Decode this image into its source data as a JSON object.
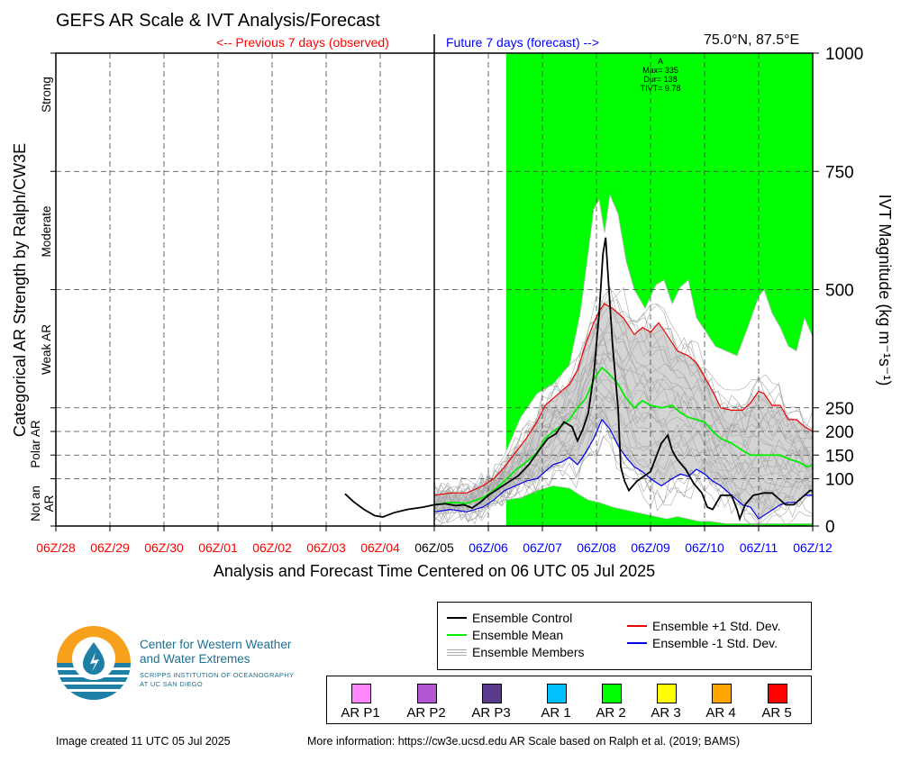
{
  "header": {
    "title": "GEFS AR Scale & IVT Analysis/Forecast",
    "previous_label": "<-- Previous 7 days (observed)",
    "future_label": "Future 7 days (forecast) -->",
    "location": "75.0°N, 87.5°E"
  },
  "chart_data": {
    "type": "line",
    "xlabel": "Analysis and Forecast Time Centered on 06 UTC 05 Jul 2025",
    "ylabel_right": "IVT Magnitude (kg m⁻¹s⁻¹)",
    "ylabel_left": "Categorical AR Strength by Ralph/CW3E",
    "ylim": [
      0,
      1000
    ],
    "x_ticks": [
      "06Z/28",
      "06Z/29",
      "06Z/30",
      "06Z/01",
      "06Z/02",
      "06Z/03",
      "06Z/04",
      "06Z/05",
      "06Z/06",
      "06Z/07",
      "06Z/08",
      "06Z/09",
      "06Z/10",
      "06Z/11",
      "06Z/12"
    ],
    "x_tick_colors": [
      "#ff0000",
      "#ff0000",
      "#ff0000",
      "#ff0000",
      "#ff0000",
      "#ff0000",
      "#ff0000",
      "#000000",
      "#0000ff",
      "#0000ff",
      "#0000ff",
      "#0000ff",
      "#0000ff",
      "#0000ff",
      "#0000ff"
    ],
    "y_ticks": [
      "1000",
      "750",
      "500",
      "250",
      "200",
      "150",
      "100",
      "0"
    ],
    "y_tick_values": [
      1000,
      750,
      500,
      250,
      200,
      150,
      100,
      0
    ],
    "categories_left": [
      "Strong",
      "Moderate",
      "Weak AR",
      "Polar AR",
      "Not an AR"
    ],
    "annotation": [
      "A",
      "Max= 335",
      "Dur= 138",
      "TIVT= 9.78"
    ],
    "ar_shading": {
      "start_day": 8.33,
      "end_day": 14,
      "color": "#00ff00",
      "label": "AR 2"
    },
    "control": [
      [
        5.35,
        68
      ],
      [
        5.5,
        52
      ],
      [
        5.7,
        35
      ],
      [
        5.9,
        22
      ],
      [
        6.05,
        19
      ],
      [
        6.25,
        28
      ],
      [
        6.5,
        35
      ],
      [
        6.8,
        40
      ],
      [
        7,
        45
      ],
      [
        7.2,
        47
      ],
      [
        7.4,
        43
      ],
      [
        7.55,
        45
      ],
      [
        7.7,
        38
      ],
      [
        7.85,
        50
      ],
      [
        8,
        65
      ],
      [
        8.2,
        80
      ],
      [
        8.4,
        95
      ],
      [
        8.55,
        106
      ],
      [
        8.75,
        130
      ],
      [
        8.95,
        162
      ],
      [
        9.1,
        185
      ],
      [
        9.25,
        195
      ],
      [
        9.4,
        220
      ],
      [
        9.55,
        210
      ],
      [
        9.65,
        180
      ],
      [
        9.75,
        205
      ],
      [
        9.85,
        240
      ],
      [
        9.95,
        320
      ],
      [
        10.05,
        450
      ],
      [
        10.12,
        575
      ],
      [
        10.17,
        610
      ],
      [
        10.22,
        520
      ],
      [
        10.3,
        380
      ],
      [
        10.4,
        250
      ],
      [
        10.45,
        125
      ],
      [
        10.52,
        95
      ],
      [
        10.6,
        75
      ],
      [
        10.75,
        95
      ],
      [
        11,
        115
      ],
      [
        11.2,
        175
      ],
      [
        11.32,
        192
      ],
      [
        11.4,
        160
      ],
      [
        11.5,
        140
      ],
      [
        11.65,
        120
      ],
      [
        11.8,
        90
      ],
      [
        11.95,
        70
      ],
      [
        12.05,
        40
      ],
      [
        12.15,
        35
      ],
      [
        12.3,
        65
      ],
      [
        12.5,
        65
      ],
      [
        12.6,
        35
      ],
      [
        12.65,
        15
      ],
      [
        12.75,
        45
      ],
      [
        12.9,
        65
      ],
      [
        13.1,
        70
      ],
      [
        13.25,
        70
      ],
      [
        13.35,
        60
      ],
      [
        13.5,
        45
      ],
      [
        13.65,
        45
      ],
      [
        13.8,
        60
      ],
      [
        13.95,
        75
      ],
      [
        14,
        75
      ]
    ],
    "mean": [
      [
        7,
        45
      ],
      [
        7.3,
        50
      ],
      [
        7.6,
        48
      ],
      [
        7.9,
        60
      ],
      [
        8.1,
        75
      ],
      [
        8.3,
        95
      ],
      [
        8.5,
        118
      ],
      [
        8.7,
        135
      ],
      [
        8.9,
        155
      ],
      [
        9.05,
        185
      ],
      [
        9.2,
        200
      ],
      [
        9.35,
        212
      ],
      [
        9.5,
        225
      ],
      [
        9.65,
        250
      ],
      [
        9.8,
        270
      ],
      [
        9.95,
        310
      ],
      [
        10.1,
        335
      ],
      [
        10.25,
        320
      ],
      [
        10.4,
        300
      ],
      [
        10.55,
        270
      ],
      [
        10.7,
        250
      ],
      [
        10.85,
        265
      ],
      [
        11,
        255
      ],
      [
        11.2,
        250
      ],
      [
        11.4,
        255
      ],
      [
        11.55,
        240
      ],
      [
        11.7,
        230
      ],
      [
        11.85,
        225
      ],
      [
        12,
        220
      ],
      [
        12.15,
        200
      ],
      [
        12.3,
        185
      ],
      [
        12.5,
        175
      ],
      [
        12.7,
        160
      ],
      [
        12.85,
        150
      ],
      [
        13,
        150
      ],
      [
        13.2,
        150
      ],
      [
        13.4,
        150
      ],
      [
        13.6,
        140
      ],
      [
        13.75,
        135
      ],
      [
        13.9,
        125
      ],
      [
        14,
        130
      ]
    ],
    "plus_std": [
      [
        7,
        65
      ],
      [
        7.3,
        70
      ],
      [
        7.6,
        70
      ],
      [
        7.9,
        85
      ],
      [
        8.1,
        100
      ],
      [
        8.3,
        125
      ],
      [
        8.5,
        155
      ],
      [
        8.7,
        185
      ],
      [
        8.9,
        220
      ],
      [
        9.05,
        255
      ],
      [
        9.2,
        270
      ],
      [
        9.35,
        285
      ],
      [
        9.5,
        300
      ],
      [
        9.65,
        330
      ],
      [
        9.8,
        385
      ],
      [
        9.95,
        430
      ],
      [
        10.05,
        455
      ],
      [
        10.15,
        470
      ],
      [
        10.3,
        460
      ],
      [
        10.5,
        440
      ],
      [
        10.7,
        405
      ],
      [
        10.85,
        420
      ],
      [
        11,
        410
      ],
      [
        11.15,
        430
      ],
      [
        11.3,
        405
      ],
      [
        11.5,
        370
      ],
      [
        11.7,
        360
      ],
      [
        11.85,
        345
      ],
      [
        12,
        315
      ],
      [
        12.15,
        285
      ],
      [
        12.3,
        250
      ],
      [
        12.5,
        245
      ],
      [
        12.7,
        245
      ],
      [
        12.85,
        260
      ],
      [
        13,
        285
      ],
      [
        13.1,
        280
      ],
      [
        13.25,
        255
      ],
      [
        13.4,
        255
      ],
      [
        13.55,
        225
      ],
      [
        13.7,
        225
      ],
      [
        13.85,
        210
      ],
      [
        14,
        200
      ]
    ],
    "minus_std": [
      [
        7,
        30
      ],
      [
        7.3,
        35
      ],
      [
        7.6,
        30
      ],
      [
        7.9,
        40
      ],
      [
        8.1,
        55
      ],
      [
        8.3,
        75
      ],
      [
        8.5,
        85
      ],
      [
        8.7,
        95
      ],
      [
        8.9,
        100
      ],
      [
        9.05,
        115
      ],
      [
        9.2,
        130
      ],
      [
        9.35,
        135
      ],
      [
        9.5,
        145
      ],
      [
        9.65,
        130
      ],
      [
        9.8,
        155
      ],
      [
        9.95,
        185
      ],
      [
        10.1,
        225
      ],
      [
        10.25,
        205
      ],
      [
        10.4,
        170
      ],
      [
        10.55,
        145
      ],
      [
        10.7,
        125
      ],
      [
        10.85,
        115
      ],
      [
        11,
        100
      ],
      [
        11.2,
        85
      ],
      [
        11.4,
        100
      ],
      [
        11.55,
        110
      ],
      [
        11.7,
        105
      ],
      [
        11.85,
        120
      ],
      [
        12,
        110
      ],
      [
        12.15,
        95
      ],
      [
        12.3,
        85
      ],
      [
        12.5,
        65
      ],
      [
        12.7,
        45
      ],
      [
        12.85,
        40
      ],
      [
        13,
        15
      ],
      [
        13.2,
        30
      ],
      [
        13.4,
        45
      ],
      [
        13.55,
        50
      ],
      [
        13.7,
        50
      ],
      [
        13.85,
        65
      ],
      [
        14,
        65
      ]
    ],
    "members_envelope_upper": [
      [
        7,
        60
      ],
      [
        7.5,
        65
      ],
      [
        8,
        90
      ],
      [
        8.3,
        150
      ],
      [
        8.6,
        230
      ],
      [
        8.9,
        280
      ],
      [
        9.2,
        300
      ],
      [
        9.5,
        340
      ],
      [
        9.7,
        450
      ],
      [
        9.85,
        580
      ],
      [
        9.95,
        670
      ],
      [
        10.05,
        690
      ],
      [
        10.15,
        620
      ],
      [
        10.25,
        700
      ],
      [
        10.4,
        660
      ],
      [
        10.55,
        560
      ],
      [
        10.7,
        500
      ],
      [
        10.9,
        460
      ],
      [
        11.1,
        510
      ],
      [
        11.25,
        520
      ],
      [
        11.4,
        470
      ],
      [
        11.55,
        505
      ],
      [
        11.7,
        520
      ],
      [
        11.85,
        440
      ],
      [
        12,
        415
      ],
      [
        12.2,
        380
      ],
      [
        12.4,
        370
      ],
      [
        12.6,
        360
      ],
      [
        12.8,
        420
      ],
      [
        13,
        485
      ],
      [
        13.1,
        500
      ],
      [
        13.25,
        450
      ],
      [
        13.4,
        420
      ],
      [
        13.55,
        380
      ],
      [
        13.7,
        370
      ],
      [
        13.85,
        440
      ],
      [
        14,
        400
      ]
    ],
    "members_envelope_lower": [
      [
        7,
        25
      ],
      [
        7.5,
        30
      ],
      [
        8,
        45
      ],
      [
        8.3,
        55
      ],
      [
        8.6,
        60
      ],
      [
        8.9,
        75
      ],
      [
        9.2,
        85
      ],
      [
        9.5,
        80
      ],
      [
        9.7,
        65
      ],
      [
        9.85,
        55
      ],
      [
        10.05,
        50
      ],
      [
        10.3,
        40
      ],
      [
        10.5,
        35
      ],
      [
        10.7,
        30
      ],
      [
        10.9,
        25
      ],
      [
        11.1,
        20
      ],
      [
        11.3,
        15
      ],
      [
        11.5,
        20
      ],
      [
        11.7,
        15
      ],
      [
        11.9,
        10
      ],
      [
        12.1,
        10
      ],
      [
        12.4,
        5
      ],
      [
        12.7,
        5
      ],
      [
        13,
        5
      ],
      [
        13.3,
        5
      ],
      [
        13.6,
        5
      ],
      [
        14,
        5
      ]
    ]
  },
  "legend": {
    "control": "Ensemble Control",
    "mean": "Ensemble Mean",
    "members": "Ensemble Members",
    "plus_std": "Ensemble +1 Std. Dev.",
    "minus_std": "Ensemble -1 Std. Dev."
  },
  "ar_scale": [
    {
      "label": "AR P1",
      "color": "#ff88ff"
    },
    {
      "label": "AR P2",
      "color": "#b455d6"
    },
    {
      "label": "AR P3",
      "color": "#5a3c8c"
    },
    {
      "label": "AR 1",
      "color": "#00c0ff"
    },
    {
      "label": "AR 2",
      "color": "#00ff00"
    },
    {
      "label": "AR 3",
      "color": "#ffff00"
    },
    {
      "label": "AR 4",
      "color": "#ffa500"
    },
    {
      "label": "AR 5",
      "color": "#ff0000"
    }
  ],
  "logo": {
    "line1": "Center for Western Weather",
    "line2": "and Water Extremes",
    "line3": "SCRIPPS INSTITUTION OF OCEANOGRAPHY",
    "line4": "AT UC SAN DIEGO"
  },
  "footer": {
    "created": "Image created 11 UTC 05 Jul 2025",
    "more_info": "More information: https://cw3e.ucsd.edu AR Scale based on Ralph et al. (2019; BAMS)"
  }
}
